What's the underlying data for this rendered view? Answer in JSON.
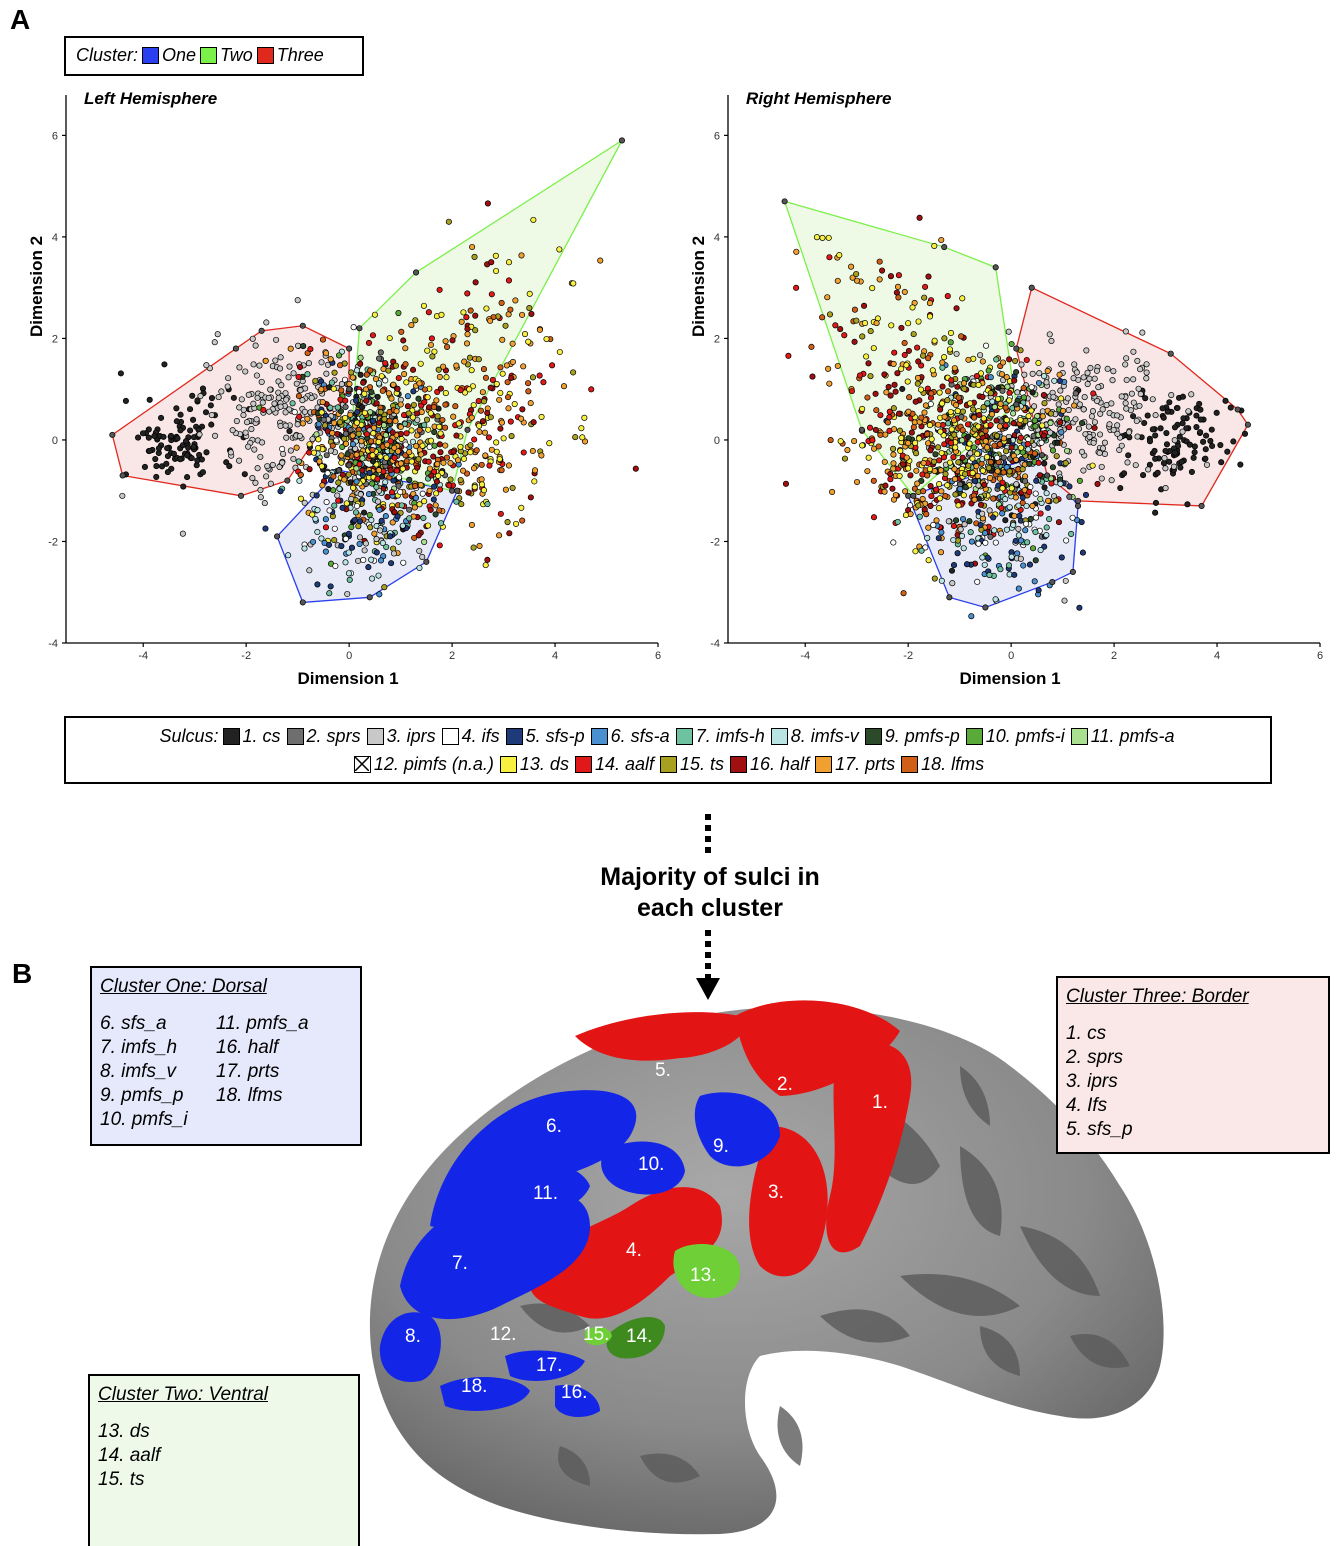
{
  "panels": {
    "a": "A",
    "b": "B"
  },
  "cluster_legend": {
    "title": "Cluster:",
    "items": [
      {
        "label": "One",
        "color": "#2a3ff0"
      },
      {
        "label": "Two",
        "color": "#7cf04a"
      },
      {
        "label": "Three",
        "color": "#e0281c"
      }
    ]
  },
  "chart_data": [
    {
      "type": "scatter",
      "title": "Left Hemisphere",
      "xlabel": "Dimension 1",
      "ylabel": "Dimension 2",
      "xlim": [
        -5.5,
        6
      ],
      "ylim": [
        -4,
        6.5
      ],
      "xticks": [
        "-4",
        "-2",
        "0",
        "2",
        "4",
        "6"
      ],
      "yticks": [
        "-4",
        "-2",
        "0",
        "2",
        "4",
        "6"
      ],
      "grid": false,
      "hulls": [
        {
          "cluster": "One",
          "points": [
            [
              -1.4,
              -1.9
            ],
            [
              -0.9,
              -3.2
            ],
            [
              0.4,
              -3.1
            ],
            [
              1.5,
              -2.4
            ],
            [
              2.1,
              -1.0
            ],
            [
              -0.2,
              -0.6
            ]
          ]
        },
        {
          "cluster": "Two",
          "points": [
            [
              0.2,
              2.2
            ],
            [
              1.3,
              3.3
            ],
            [
              5.3,
              5.9
            ],
            [
              2.3,
              0.2
            ],
            [
              2.0,
              -1.0
            ],
            [
              0.0,
              -0.5
            ]
          ]
        },
        {
          "cluster": "Three",
          "points": [
            [
              -4.6,
              0.1
            ],
            [
              -2.2,
              1.8
            ],
            [
              -1.7,
              2.15
            ],
            [
              -0.9,
              2.25
            ],
            [
              0.0,
              1.8
            ],
            [
              0.0,
              1.0
            ],
            [
              -1.2,
              -0.8
            ],
            [
              -2.1,
              -1.1
            ],
            [
              -4.4,
              -0.7
            ]
          ]
        }
      ],
      "groups": [
        {
          "name": "cs-core",
          "color": "#222222",
          "cx": -3.3,
          "cy": 0.0,
          "sx": 0.55,
          "sy": 0.45,
          "n": 110
        },
        {
          "name": "border-grey",
          "color": "#c8c8c8",
          "cx": -1.2,
          "cy": 0.6,
          "sx": 0.75,
          "sy": 0.7,
          "n": 200
        },
        {
          "name": "center-mix",
          "color": "mixed",
          "cx": 0.4,
          "cy": -0.1,
          "sx": 0.65,
          "sy": 0.8,
          "n": 600
        },
        {
          "name": "ventral-mix",
          "color": "warm",
          "cx": 1.6,
          "cy": 0.1,
          "sx": 1.1,
          "sy": 1.0,
          "n": 420
        },
        {
          "name": "ventral-tail",
          "color": "warm",
          "cx": 3.2,
          "cy": 2.3,
          "sx": 0.8,
          "sy": 0.9,
          "n": 80
        },
        {
          "name": "dorsal-low",
          "color": "cool",
          "cx": 0.3,
          "cy": -1.8,
          "sx": 0.7,
          "sy": 0.5,
          "n": 110
        }
      ]
    },
    {
      "type": "scatter",
      "title": "Right Hemisphere",
      "xlabel": "Dimension 1",
      "ylabel": "Dimension 2",
      "xlim": [
        -5.5,
        6
      ],
      "ylim": [
        -4,
        6.5
      ],
      "xticks": [
        "-4",
        "-2",
        "0",
        "2",
        "4",
        "6"
      ],
      "yticks": [
        "-4",
        "-2",
        "0",
        "2",
        "4",
        "6"
      ],
      "grid": false,
      "hulls": [
        {
          "cluster": "One",
          "points": [
            [
              -2.0,
              -1.1
            ],
            [
              -1.2,
              -3.1
            ],
            [
              -0.5,
              -3.3
            ],
            [
              0.8,
              -2.8
            ],
            [
              1.2,
              -2.6
            ],
            [
              1.3,
              -1.3
            ],
            [
              0.6,
              -0.3
            ]
          ]
        },
        {
          "cluster": "Two",
          "points": [
            [
              -4.4,
              4.7
            ],
            [
              -1.3,
              3.8
            ],
            [
              -0.3,
              3.4
            ],
            [
              0.1,
              0.7
            ],
            [
              -1.9,
              -1.1
            ],
            [
              -2.9,
              0.2
            ]
          ]
        },
        {
          "cluster": "Three",
          "points": [
            [
              0.1,
              1.8
            ],
            [
              0.4,
              3.0
            ],
            [
              3.1,
              1.7
            ],
            [
              4.4,
              0.6
            ],
            [
              4.6,
              0.3
            ],
            [
              3.7,
              -1.3
            ],
            [
              1.3,
              -1.2
            ],
            [
              0.7,
              -0.7
            ]
          ]
        }
      ],
      "groups": [
        {
          "name": "cs-core",
          "color": "#222222",
          "cx": 3.2,
          "cy": 0.0,
          "sx": 0.5,
          "sy": 0.45,
          "n": 110
        },
        {
          "name": "border-grey",
          "color": "#c8c8c8",
          "cx": 1.5,
          "cy": 0.5,
          "sx": 0.8,
          "sy": 0.7,
          "n": 200
        },
        {
          "name": "center-mix",
          "color": "mixed",
          "cx": -0.3,
          "cy": -0.2,
          "sx": 0.7,
          "sy": 0.8,
          "n": 600
        },
        {
          "name": "ventral-mix",
          "color": "warm",
          "cx": -1.4,
          "cy": 0.0,
          "sx": 0.9,
          "sy": 0.9,
          "n": 420
        },
        {
          "name": "ventral-tail",
          "color": "warm",
          "cx": -2.6,
          "cy": 2.4,
          "sx": 0.8,
          "sy": 0.9,
          "n": 80
        },
        {
          "name": "dorsal-low",
          "color": "cool",
          "cx": -0.2,
          "cy": -2.0,
          "sx": 0.8,
          "sy": 0.55,
          "n": 110
        }
      ]
    }
  ],
  "sulcus_legend": {
    "title": "Sulcus:",
    "items": [
      {
        "label": "1. cs",
        "color": "#222222"
      },
      {
        "label": "2. sprs",
        "color": "#6e6e6e"
      },
      {
        "label": "3. iprs",
        "color": "#c8c8c8"
      },
      {
        "label": "4. ifs",
        "color": "#ffffff"
      },
      {
        "label": "5. sfs-p",
        "color": "#1f3a78"
      },
      {
        "label": "6. sfs-a",
        "color": "#4a90d0"
      },
      {
        "label": "7. imfs-h",
        "color": "#6fc2a0"
      },
      {
        "label": "8. imfs-v",
        "color": "#b8e4e4"
      },
      {
        "label": "9. pmfs-p",
        "color": "#2a4a2a"
      },
      {
        "label": "10. pmfs-i",
        "color": "#5aaa3a"
      },
      {
        "label": "11. pmfs-a",
        "color": "#a8e090"
      },
      {
        "label": "12. pimfs (n.a.)",
        "color": "cross"
      },
      {
        "label": "13. ds",
        "color": "#f8f040"
      },
      {
        "label": "14. aalf",
        "color": "#e01818"
      },
      {
        "label": "15. ts",
        "color": "#a8a020"
      },
      {
        "label": "16. half",
        "color": "#a01010"
      },
      {
        "label": "17. prts",
        "color": "#f0a030"
      },
      {
        "label": "18. lfms",
        "color": "#d06018"
      }
    ]
  },
  "arrow_text": {
    "line1": "Majority of sulci in",
    "line2": "each cluster"
  },
  "cluster_one_box": {
    "heading": "Cluster One: Dorsal",
    "col1": [
      "6. sfs_a",
      "7. imfs_h",
      "8. imfs_v",
      "9. pmfs_p",
      "10. pmfs_i"
    ],
    "col2": [
      "11. pmfs_a",
      "16. half",
      "17. prts",
      "18. lfms"
    ]
  },
  "cluster_two_box": {
    "heading": "Cluster Two: Ventral",
    "items": [
      "13. ds",
      "14. aalf",
      "15. ts"
    ]
  },
  "cluster_three_box": {
    "heading": "Cluster Three: Border",
    "items": [
      "1. cs",
      "2. sprs",
      "3. iprs",
      "4. Ifs",
      "5. sfs_p"
    ]
  },
  "brain_labels": [
    {
      "text": "1.",
      "region": "red"
    },
    {
      "text": "2.",
      "region": "red"
    },
    {
      "text": "3.",
      "region": "red"
    },
    {
      "text": "4.",
      "region": "red"
    },
    {
      "text": "5.",
      "region": "red"
    },
    {
      "text": "6.",
      "region": "blue"
    },
    {
      "text": "7.",
      "region": "blue"
    },
    {
      "text": "8.",
      "region": "blue"
    },
    {
      "text": "9.",
      "region": "blue"
    },
    {
      "text": "10.",
      "region": "blue"
    },
    {
      "text": "11.",
      "region": "blue"
    },
    {
      "text": "12.",
      "region": "grey"
    },
    {
      "text": "13.",
      "region": "green"
    },
    {
      "text": "14.",
      "region": "darkgreen"
    },
    {
      "text": "15.",
      "region": "green"
    },
    {
      "text": "16.",
      "region": "blue"
    },
    {
      "text": "17.",
      "region": "blue"
    },
    {
      "text": "18.",
      "region": "blue"
    }
  ]
}
